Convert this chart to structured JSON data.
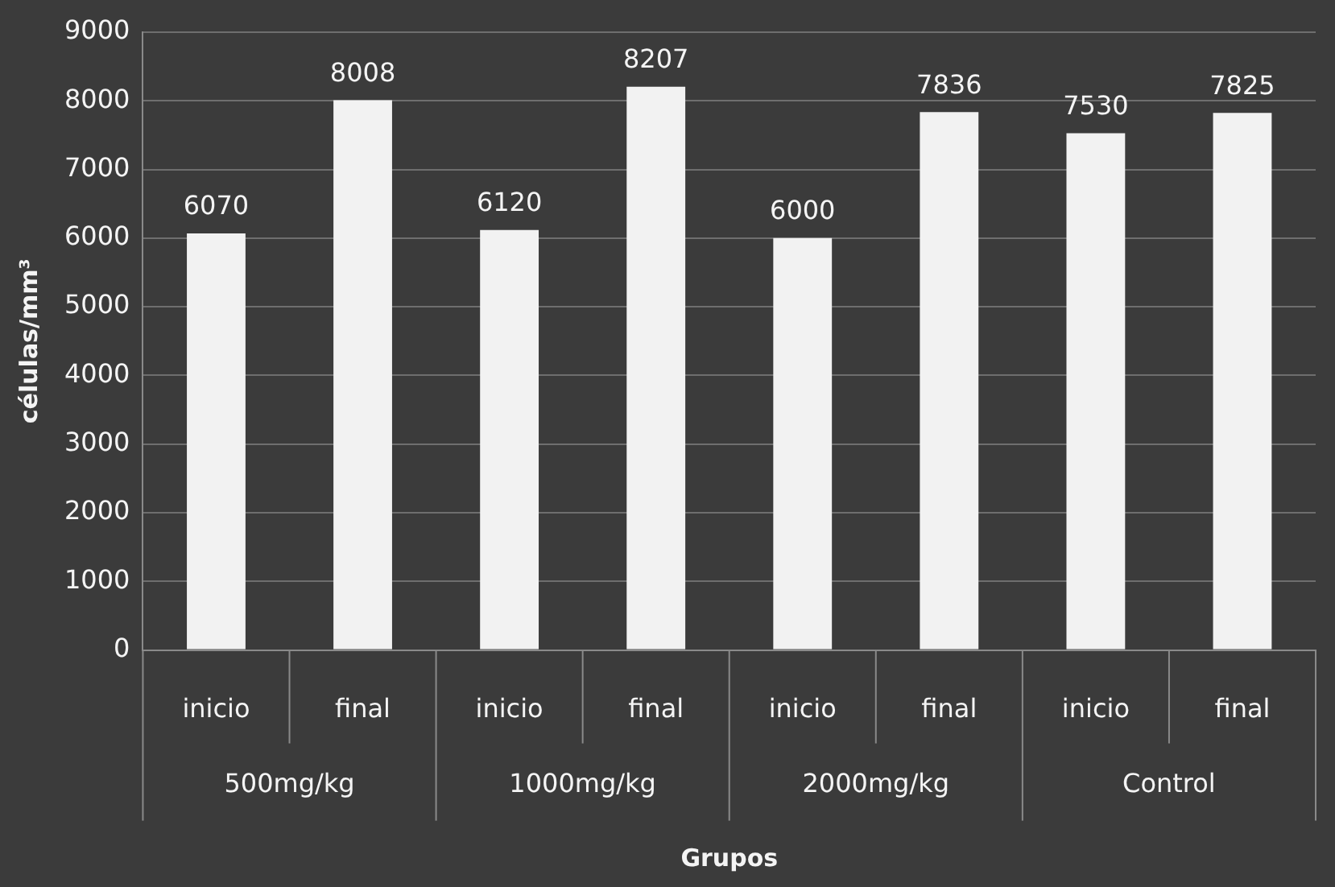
{
  "chart_data": {
    "type": "bar",
    "xlabel": "Grupos",
    "ylabel": "células/mm³",
    "categories": [
      "inicio",
      "final",
      "inicio",
      "final",
      "inicio",
      "final",
      "inicio",
      "final"
    ],
    "values": [
      6070,
      8008,
      6120,
      8207,
      6000,
      7836,
      7530,
      7825
    ],
    "color": "#f2f2f2",
    "data_labels": true,
    "ylim": [
      0,
      9000
    ],
    "yticks": [
      0,
      1000,
      2000,
      3000,
      4000,
      5000,
      6000,
      7000,
      8000,
      9000
    ],
    "grid": "y",
    "legend": false,
    "annotations": [
      "500mg/kg",
      "1000mg/kg",
      "2000mg/kg",
      "Control"
    ]
  }
}
